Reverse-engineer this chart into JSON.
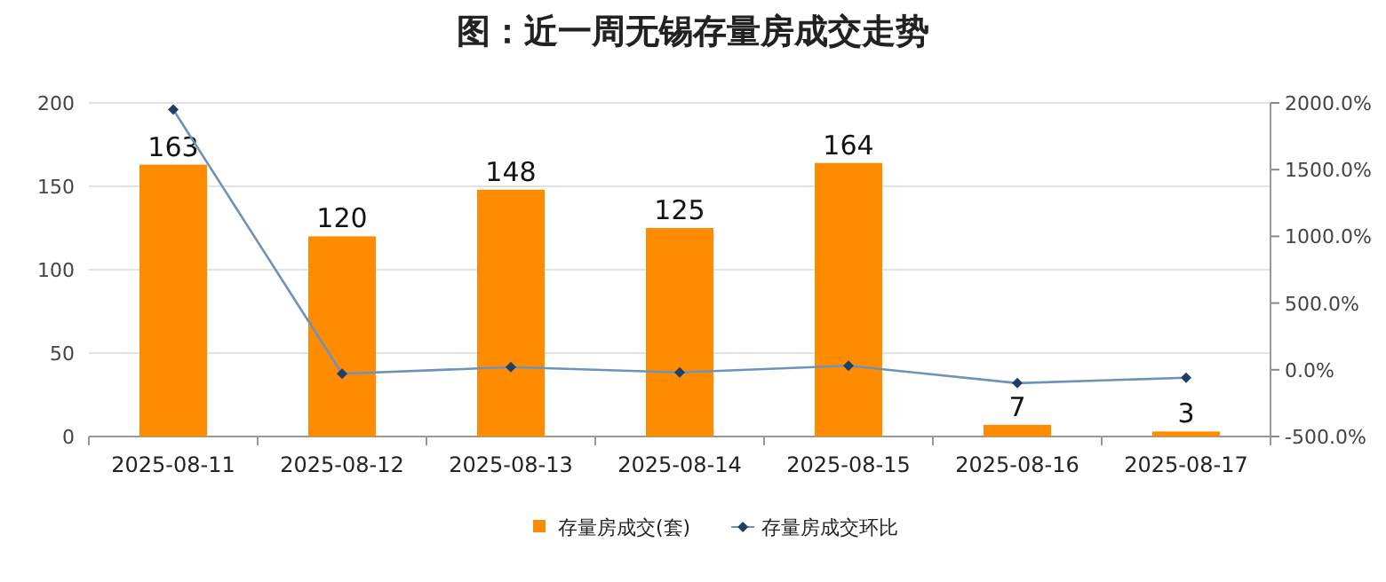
{
  "chart_data": {
    "type": "bar",
    "title": "图：近一周无锡存量房成交走势",
    "categories": [
      "2025-08-11",
      "2025-08-12",
      "2025-08-13",
      "2025-08-14",
      "2025-08-15",
      "2025-08-16",
      "2025-08-17"
    ],
    "series": [
      {
        "name": "存量房成交(套)",
        "color": "#ff8c00",
        "values": [
          163,
          120,
          148,
          125,
          164,
          7,
          3
        ],
        "value_labels": [
          "163",
          "120",
          "148",
          "125",
          "164",
          "7",
          "3"
        ]
      },
      {
        "name": "存量房成交环比",
        "type": "line",
        "axis": "y2",
        "color": "#6e93b8",
        "marker": "diamond",
        "values": [
          1950,
          -30,
          20,
          -20,
          30,
          -100,
          -60
        ]
      }
    ],
    "ylim": [
      0,
      200
    ],
    "yticks": [
      0,
      50,
      100,
      150,
      200
    ],
    "y2lim": [
      -500,
      2000
    ],
    "y2ticks": [
      {
        "value": -500,
        "label": "-500.0%"
      },
      {
        "value": 0,
        "label": "0.0%"
      },
      {
        "value": 500,
        "label": "500.0%"
      },
      {
        "value": 1000,
        "label": "1000.0%"
      },
      {
        "value": 1500,
        "label": "1500.0%"
      },
      {
        "value": 2000,
        "label": "2000.0%"
      }
    ],
    "grid": "y",
    "legend": "bottom"
  }
}
